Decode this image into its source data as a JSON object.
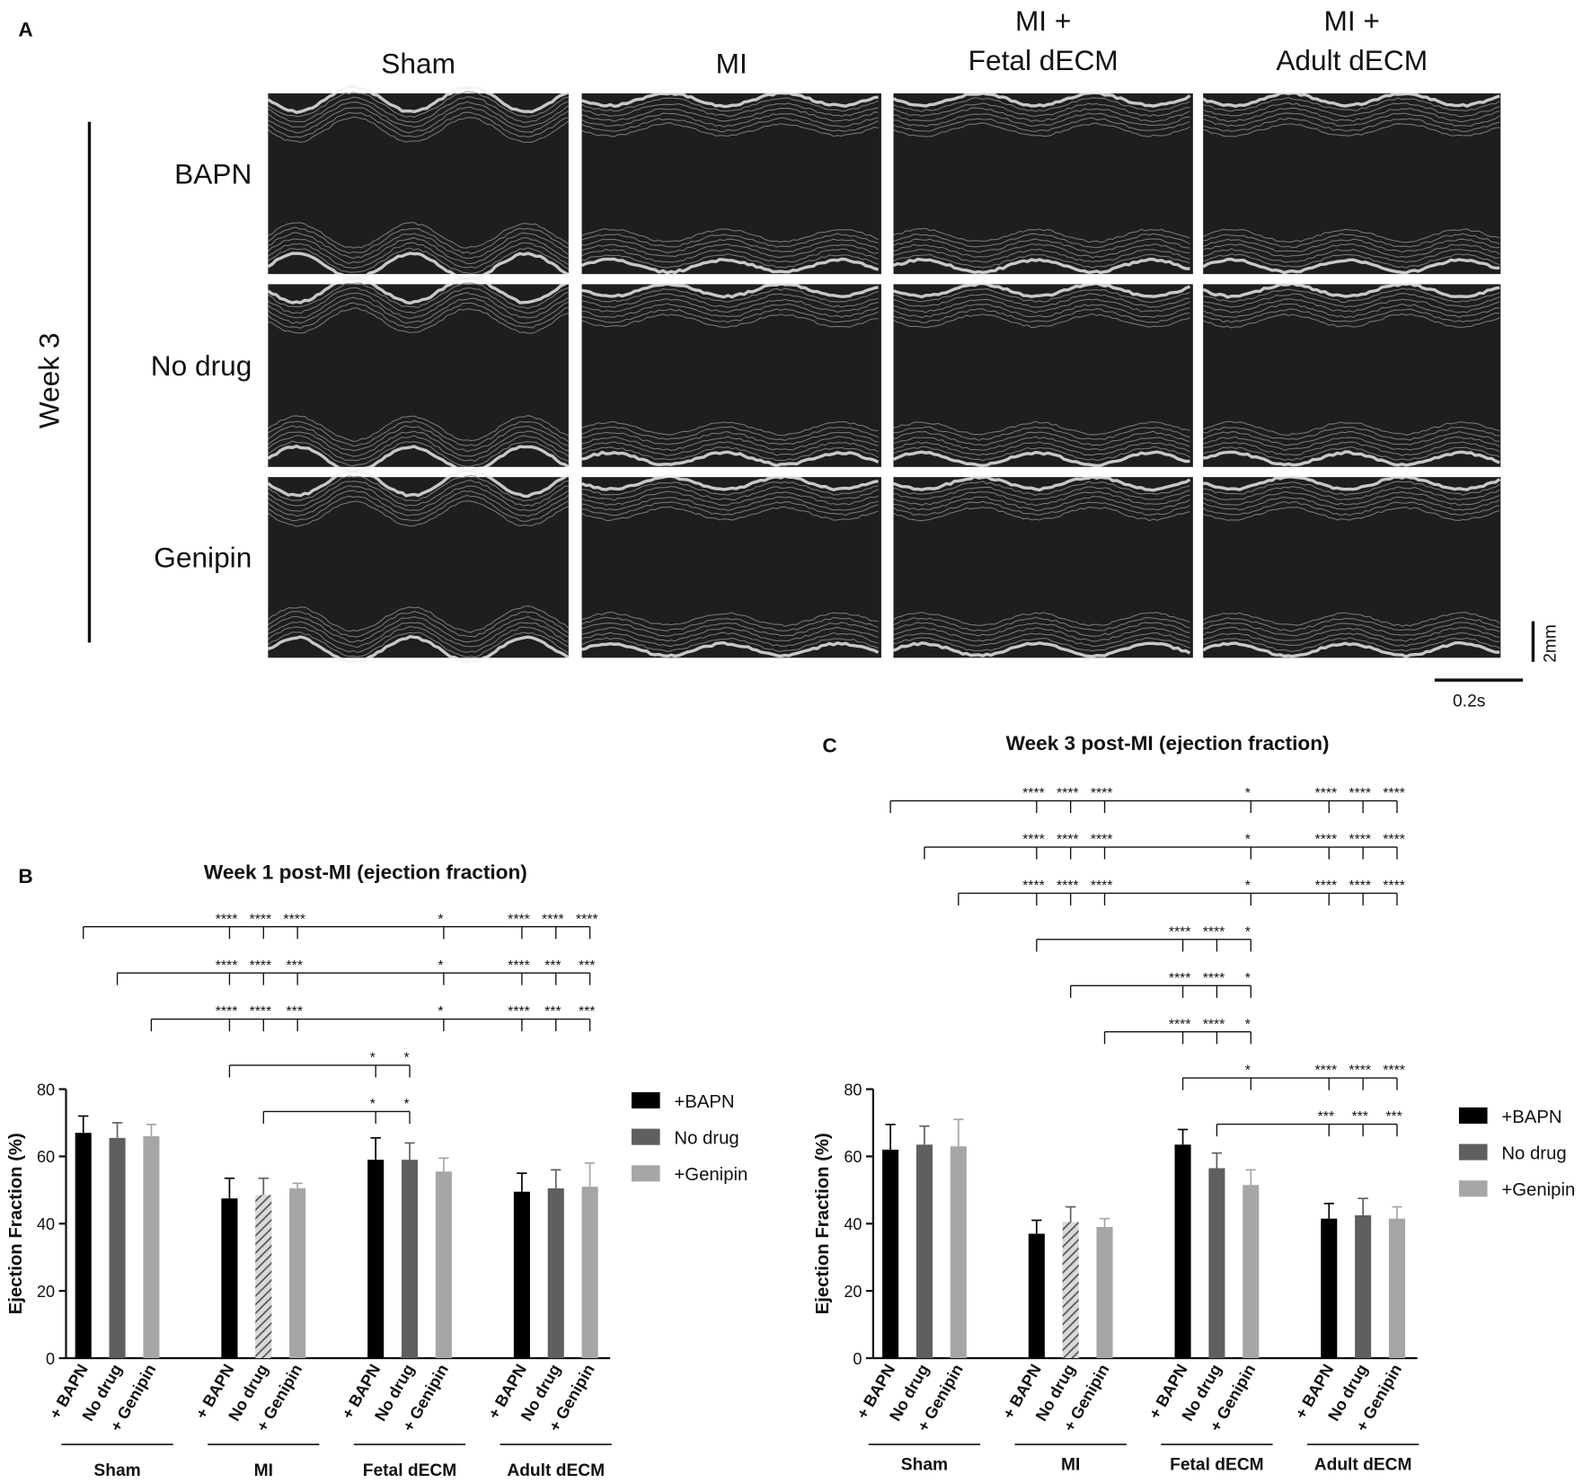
{
  "panel_a": {
    "label": "A",
    "columns": [
      [
        "Sham"
      ],
      [
        "MI"
      ],
      [
        "MI +",
        "Fetal dECM"
      ],
      [
        "MI +",
        "Adult dECM"
      ]
    ],
    "rows": [
      "BAPN",
      "No drug",
      "Genipin"
    ],
    "side_label": "Week 3",
    "scale_y": "2mm",
    "scale_x": "0.2s"
  },
  "chart_data": [
    {
      "type": "bar",
      "panel": "B",
      "title": "Week 1 post-MI (ejection fraction)",
      "ylabel": "Ejection Fraction (%)",
      "categories": [
        "Sham",
        "MI",
        "Fetal dECM",
        "Adult dECM"
      ],
      "bar_labels": [
        "+ BAPN",
        "No drug",
        "+ Genipin"
      ],
      "series": [
        {
          "name": "+BAPN",
          "color": "#000000",
          "values": [
            67,
            47.5,
            59,
            49.5
          ],
          "errors": [
            5,
            6,
            6.5,
            5.5
          ],
          "hatch": [
            false,
            false,
            false,
            false
          ]
        },
        {
          "name": "No drug",
          "color": "#5f5f5f",
          "values": [
            65.5,
            48.5,
            59,
            50.5
          ],
          "errors": [
            4.5,
            5,
            5,
            5.5
          ],
          "hatch": [
            false,
            true,
            false,
            false
          ]
        },
        {
          "name": "+Genipin",
          "color": "#a6a6a6",
          "values": [
            66,
            50.5,
            55.5,
            51
          ],
          "errors": [
            3.5,
            1.5,
            4,
            7
          ],
          "hatch": [
            false,
            false,
            false,
            false
          ]
        }
      ],
      "ylim": [
        0,
        80
      ],
      "yticks": [
        0,
        20,
        40,
        60,
        80
      ],
      "legend": "right",
      "brackets": [
        {
          "from": [
            0,
            0
          ],
          "targets": [
            {
              "bar": [
                1,
                0
              ],
              "label": "****"
            },
            {
              "bar": [
                1,
                1
              ],
              "label": "****"
            },
            {
              "bar": [
                1,
                2
              ],
              "label": "****"
            },
            {
              "bar": [
                2,
                2
              ],
              "label": "*"
            },
            {
              "bar": [
                3,
                0
              ],
              "label": "****"
            },
            {
              "bar": [
                3,
                1
              ],
              "label": "****"
            },
            {
              "bar": [
                3,
                2
              ],
              "label": "****"
            }
          ]
        },
        {
          "from": [
            0,
            1
          ],
          "targets": [
            {
              "bar": [
                1,
                0
              ],
              "label": "****"
            },
            {
              "bar": [
                1,
                1
              ],
              "label": "****"
            },
            {
              "bar": [
                1,
                2
              ],
              "label": "***"
            },
            {
              "bar": [
                2,
                2
              ],
              "label": "*"
            },
            {
              "bar": [
                3,
                0
              ],
              "label": "****"
            },
            {
              "bar": [
                3,
                1
              ],
              "label": "***"
            },
            {
              "bar": [
                3,
                2
              ],
              "label": "***"
            }
          ]
        },
        {
          "from": [
            0,
            2
          ],
          "targets": [
            {
              "bar": [
                1,
                0
              ],
              "label": "****"
            },
            {
              "bar": [
                1,
                1
              ],
              "label": "****"
            },
            {
              "bar": [
                1,
                2
              ],
              "label": "***"
            },
            {
              "bar": [
                2,
                2
              ],
              "label": "*"
            },
            {
              "bar": [
                3,
                0
              ],
              "label": "****"
            },
            {
              "bar": [
                3,
                1
              ],
              "label": "***"
            },
            {
              "bar": [
                3,
                2
              ],
              "label": "***"
            }
          ]
        },
        {
          "from": [
            1,
            0
          ],
          "targets": [
            {
              "bar": [
                2,
                0
              ],
              "label": "*"
            },
            {
              "bar": [
                2,
                1
              ],
              "label": "*"
            }
          ]
        },
        {
          "from": [
            1,
            1
          ],
          "targets": [
            {
              "bar": [
                2,
                0
              ],
              "label": "*"
            },
            {
              "bar": [
                2,
                1
              ],
              "label": "*"
            }
          ]
        }
      ]
    },
    {
      "type": "bar",
      "panel": "C",
      "title": "Week 3 post-MI (ejection fraction)",
      "ylabel": "Ejection Fraction (%)",
      "categories": [
        "Sham",
        "MI",
        "Fetal dECM",
        "Adult dECM"
      ],
      "bar_labels": [
        "+ BAPN",
        "No drug",
        "+ Genipin"
      ],
      "series": [
        {
          "name": "+BAPN",
          "color": "#000000",
          "values": [
            62,
            37,
            63.5,
            41.5
          ],
          "errors": [
            7.5,
            4,
            4.5,
            4.5
          ],
          "hatch": [
            false,
            false,
            false,
            false
          ]
        },
        {
          "name": "No drug",
          "color": "#5f5f5f",
          "values": [
            63.5,
            40.5,
            56.5,
            42.5
          ],
          "errors": [
            5.5,
            4.5,
            4.5,
            5
          ],
          "hatch": [
            false,
            true,
            false,
            false
          ]
        },
        {
          "name": "+Genipin",
          "color": "#a6a6a6",
          "values": [
            63,
            39,
            51.5,
            41.5
          ],
          "errors": [
            8,
            2.5,
            4.5,
            3.5
          ],
          "hatch": [
            false,
            false,
            false,
            false
          ]
        }
      ],
      "ylim": [
        0,
        80
      ],
      "yticks": [
        0,
        20,
        40,
        60,
        80
      ],
      "legend": "right",
      "brackets": [
        {
          "from": [
            0,
            0
          ],
          "targets": [
            {
              "bar": [
                1,
                0
              ],
              "label": "****"
            },
            {
              "bar": [
                1,
                1
              ],
              "label": "****"
            },
            {
              "bar": [
                1,
                2
              ],
              "label": "****"
            },
            {
              "bar": [
                2,
                2
              ],
              "label": "*"
            },
            {
              "bar": [
                3,
                0
              ],
              "label": "****"
            },
            {
              "bar": [
                3,
                1
              ],
              "label": "****"
            },
            {
              "bar": [
                3,
                2
              ],
              "label": "****"
            }
          ]
        },
        {
          "from": [
            0,
            1
          ],
          "targets": [
            {
              "bar": [
                1,
                0
              ],
              "label": "****"
            },
            {
              "bar": [
                1,
                1
              ],
              "label": "****"
            },
            {
              "bar": [
                1,
                2
              ],
              "label": "****"
            },
            {
              "bar": [
                2,
                2
              ],
              "label": "*"
            },
            {
              "bar": [
                3,
                0
              ],
              "label": "****"
            },
            {
              "bar": [
                3,
                1
              ],
              "label": "****"
            },
            {
              "bar": [
                3,
                2
              ],
              "label": "****"
            }
          ]
        },
        {
          "from": [
            0,
            2
          ],
          "targets": [
            {
              "bar": [
                1,
                0
              ],
              "label": "****"
            },
            {
              "bar": [
                1,
                1
              ],
              "label": "****"
            },
            {
              "bar": [
                1,
                2
              ],
              "label": "****"
            },
            {
              "bar": [
                2,
                2
              ],
              "label": "*"
            },
            {
              "bar": [
                3,
                0
              ],
              "label": "****"
            },
            {
              "bar": [
                3,
                1
              ],
              "label": "****"
            },
            {
              "bar": [
                3,
                2
              ],
              "label": "****"
            }
          ]
        },
        {
          "from": [
            1,
            0
          ],
          "targets": [
            {
              "bar": [
                2,
                0
              ],
              "label": "****"
            },
            {
              "bar": [
                2,
                1
              ],
              "label": "****"
            },
            {
              "bar": [
                2,
                2
              ],
              "label": "*"
            }
          ]
        },
        {
          "from": [
            1,
            1
          ],
          "targets": [
            {
              "bar": [
                2,
                0
              ],
              "label": "****"
            },
            {
              "bar": [
                2,
                1
              ],
              "label": "****"
            },
            {
              "bar": [
                2,
                2
              ],
              "label": "*"
            }
          ]
        },
        {
          "from": [
            1,
            2
          ],
          "targets": [
            {
              "bar": [
                2,
                0
              ],
              "label": "****"
            },
            {
              "bar": [
                2,
                1
              ],
              "label": "****"
            },
            {
              "bar": [
                2,
                2
              ],
              "label": "*"
            }
          ]
        },
        {
          "from": [
            2,
            0
          ],
          "targets": [
            {
              "bar": [
                2,
                2
              ],
              "label": "*"
            },
            {
              "bar": [
                3,
                0
              ],
              "label": "****"
            },
            {
              "bar": [
                3,
                1
              ],
              "label": "****"
            },
            {
              "bar": [
                3,
                2
              ],
              "label": "****"
            }
          ]
        },
        {
          "from": [
            2,
            1
          ],
          "targets": [
            {
              "bar": [
                3,
                0
              ],
              "label": "***"
            },
            {
              "bar": [
                3,
                1
              ],
              "label": "***"
            },
            {
              "bar": [
                3,
                2
              ],
              "label": "***"
            }
          ]
        }
      ]
    }
  ]
}
